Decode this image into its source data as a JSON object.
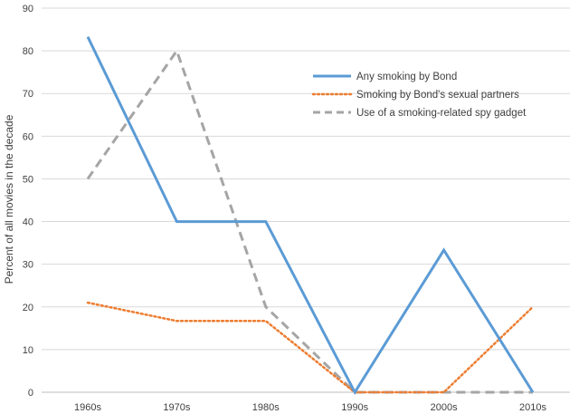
{
  "chart_data": {
    "type": "line",
    "title": "",
    "xlabel": "",
    "ylabel": "Percent of all movies in the decade",
    "categories": [
      "1960s",
      "1970s",
      "1980s",
      "1990s",
      "2000s",
      "2010s"
    ],
    "ylim": [
      0,
      90
    ],
    "yticks": [
      0,
      10,
      20,
      30,
      40,
      50,
      60,
      70,
      80,
      90
    ],
    "grid": true,
    "legend_position": "top-right",
    "series": [
      {
        "name": "Any smoking by Bond",
        "values": [
          83.3,
          40,
          40,
          0,
          33.3,
          0
        ],
        "color": "#5b9bd5",
        "style": "solid"
      },
      {
        "name": "Smoking by Bond's sexual partners",
        "values": [
          21,
          16.7,
          16.7,
          0,
          0,
          20
        ],
        "color": "#ed7d31",
        "style": "dotted"
      },
      {
        "name": "Use of a smoking-related spy gadget",
        "values": [
          50,
          80,
          20,
          0,
          0,
          0
        ],
        "color": "#a5a5a5",
        "style": "dashed"
      }
    ]
  }
}
